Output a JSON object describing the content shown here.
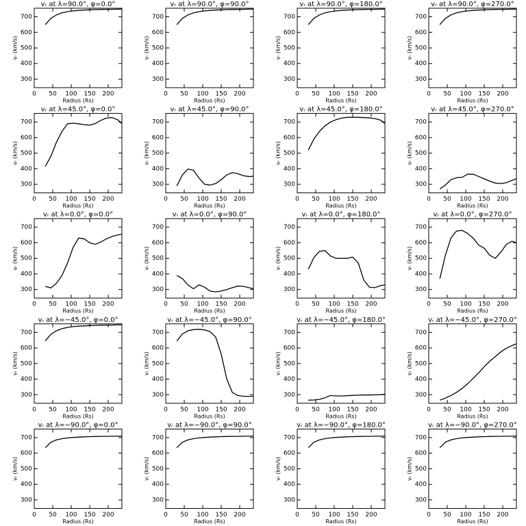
{
  "chart_data": [
    {
      "type": "line",
      "title": "vᵣ at λ=90.0°, φ=0.0°",
      "xlabel": "Radius (Rs)",
      "ylabel": "vᵣ (km/s)",
      "xlim": [
        0,
        237
      ],
      "ylim": [
        245,
        755
      ],
      "xticks": [
        0,
        50,
        100,
        150,
        200
      ],
      "yticks": [
        300,
        400,
        500,
        600,
        700
      ],
      "color": "#000000",
      "x": [
        30,
        45,
        60,
        75,
        90,
        105,
        120,
        135,
        150,
        165,
        180,
        195,
        210,
        225,
        237
      ],
      "values": [
        650,
        690,
        712,
        725,
        733,
        738,
        741,
        743,
        745,
        746,
        747,
        748,
        748,
        749,
        749
      ]
    },
    {
      "type": "line",
      "title": "vᵣ at λ=90.0°, φ=90.0°",
      "xlabel": "Radius (Rs)",
      "ylabel": "vᵣ (km/s)",
      "xlim": [
        0,
        237
      ],
      "ylim": [
        245,
        755
      ],
      "xticks": [
        0,
        50,
        100,
        150,
        200
      ],
      "yticks": [
        300,
        400,
        500,
        600,
        700
      ],
      "color": "#000000",
      "x": [
        30,
        45,
        60,
        75,
        90,
        105,
        120,
        135,
        150,
        165,
        180,
        195,
        210,
        225,
        237
      ],
      "values": [
        650,
        690,
        712,
        725,
        733,
        738,
        741,
        743,
        745,
        746,
        747,
        748,
        748,
        749,
        749
      ]
    },
    {
      "type": "line",
      "title": "vᵣ at λ=90.0°, φ=180.0°",
      "xlabel": "Radius (Rs)",
      "ylabel": "vᵣ (km/s)",
      "xlim": [
        0,
        237
      ],
      "ylim": [
        245,
        755
      ],
      "xticks": [
        0,
        50,
        100,
        150,
        200
      ],
      "yticks": [
        300,
        400,
        500,
        600,
        700
      ],
      "color": "#000000",
      "x": [
        30,
        45,
        60,
        75,
        90,
        105,
        120,
        135,
        150,
        165,
        180,
        195,
        210,
        225,
        237
      ],
      "values": [
        650,
        690,
        712,
        725,
        733,
        738,
        741,
        743,
        745,
        746,
        747,
        748,
        748,
        749,
        749
      ]
    },
    {
      "type": "line",
      "title": "vᵣ at λ=90.0°, φ=270.0°",
      "xlabel": "Radius (Rs)",
      "ylabel": "vᵣ (km/s)",
      "xlim": [
        0,
        237
      ],
      "ylim": [
        245,
        755
      ],
      "xticks": [
        0,
        50,
        100,
        150,
        200
      ],
      "yticks": [
        300,
        400,
        500,
        600,
        700
      ],
      "color": "#000000",
      "x": [
        30,
        45,
        60,
        75,
        90,
        105,
        120,
        135,
        150,
        165,
        180,
        195,
        210,
        225,
        237
      ],
      "values": [
        650,
        690,
        712,
        725,
        733,
        738,
        741,
        743,
        745,
        746,
        747,
        748,
        748,
        749,
        749
      ]
    },
    {
      "type": "line",
      "title": "vᵣ at λ=45.0°, φ=0.0°",
      "xlabel": "Radius (Rs)",
      "ylabel": "vᵣ (km/s)",
      "xlim": [
        0,
        237
      ],
      "ylim": [
        245,
        755
      ],
      "xticks": [
        0,
        50,
        100,
        150,
        200
      ],
      "yticks": [
        300,
        400,
        500,
        600,
        700
      ],
      "color": "#000000",
      "x": [
        30,
        45,
        60,
        75,
        90,
        105,
        120,
        135,
        150,
        165,
        180,
        195,
        210,
        225,
        237
      ],
      "values": [
        415,
        480,
        570,
        640,
        688,
        692,
        688,
        683,
        680,
        690,
        710,
        725,
        728,
        715,
        690
      ]
    },
    {
      "type": "line",
      "title": "vᵣ at λ=45.0°, φ=90.0°",
      "xlabel": "Radius (Rs)",
      "ylabel": "vᵣ (km/s)",
      "xlim": [
        0,
        237
      ],
      "ylim": [
        245,
        755
      ],
      "xticks": [
        0,
        50,
        100,
        150,
        200
      ],
      "yticks": [
        300,
        400,
        500,
        600,
        700
      ],
      "color": "#000000",
      "x": [
        30,
        45,
        60,
        75,
        90,
        105,
        120,
        135,
        150,
        165,
        180,
        195,
        210,
        225,
        237
      ],
      "values": [
        290,
        360,
        398,
        390,
        340,
        300,
        295,
        305,
        330,
        360,
        375,
        368,
        355,
        350,
        352
      ]
    },
    {
      "type": "line",
      "title": "vᵣ at λ=45.0°, φ=180.0°",
      "xlabel": "Radius (Rs)",
      "ylabel": "vᵣ (km/s)",
      "xlim": [
        0,
        237
      ],
      "ylim": [
        245,
        755
      ],
      "xticks": [
        0,
        50,
        100,
        150,
        200
      ],
      "yticks": [
        300,
        400,
        500,
        600,
        700
      ],
      "color": "#000000",
      "x": [
        30,
        45,
        60,
        75,
        90,
        105,
        120,
        135,
        150,
        165,
        180,
        195,
        210,
        225,
        237
      ],
      "values": [
        520,
        590,
        640,
        675,
        700,
        715,
        725,
        730,
        730,
        730,
        728,
        726,
        722,
        712,
        690
      ]
    },
    {
      "type": "line",
      "title": "vᵣ at λ=45.0°, φ=270.0°",
      "xlabel": "Radius (Rs)",
      "ylabel": "vᵣ (km/s)",
      "xlim": [
        0,
        237
      ],
      "ylim": [
        245,
        755
      ],
      "xticks": [
        0,
        50,
        100,
        150,
        200
      ],
      "yticks": [
        300,
        400,
        500,
        600,
        700
      ],
      "color": "#000000",
      "x": [
        30,
        45,
        60,
        75,
        90,
        105,
        120,
        135,
        150,
        165,
        180,
        195,
        210,
        225,
        237
      ],
      "values": [
        270,
        295,
        330,
        342,
        345,
        365,
        365,
        350,
        335,
        320,
        308,
        305,
        310,
        325,
        335
      ]
    },
    {
      "type": "line",
      "title": "vᵣ at λ=0.0°, φ=0.0°",
      "xlabel": "Radius (Rs)",
      "ylabel": "vᵣ (km/s)",
      "xlim": [
        0,
        237
      ],
      "ylim": [
        245,
        755
      ],
      "xticks": [
        0,
        50,
        100,
        150,
        200
      ],
      "yticks": [
        300,
        400,
        500,
        600,
        700
      ],
      "color": "#000000",
      "x": [
        30,
        45,
        60,
        75,
        90,
        105,
        120,
        135,
        150,
        165,
        180,
        195,
        210,
        225,
        237
      ],
      "values": [
        320,
        310,
        340,
        390,
        470,
        570,
        630,
        625,
        600,
        590,
        605,
        625,
        640,
        650,
        655
      ]
    },
    {
      "type": "line",
      "title": "vᵣ at λ=0.0°, φ=90.0°",
      "xlabel": "Radius (Rs)",
      "ylabel": "vᵣ (km/s)",
      "xlim": [
        0,
        237
      ],
      "ylim": [
        245,
        755
      ],
      "xticks": [
        0,
        50,
        100,
        150,
        200
      ],
      "yticks": [
        300,
        400,
        500,
        600,
        700
      ],
      "color": "#000000",
      "x": [
        30,
        45,
        60,
        75,
        90,
        105,
        120,
        135,
        150,
        165,
        180,
        195,
        210,
        225,
        237
      ],
      "values": [
        390,
        370,
        330,
        305,
        330,
        315,
        290,
        285,
        290,
        300,
        312,
        322,
        320,
        312,
        305
      ]
    },
    {
      "type": "line",
      "title": "vᵣ at λ=0.0°, φ=180.0°",
      "xlabel": "Radius (Rs)",
      "ylabel": "vᵣ (km/s)",
      "xlim": [
        0,
        237
      ],
      "ylim": [
        245,
        755
      ],
      "xticks": [
        0,
        50,
        100,
        150,
        200
      ],
      "yticks": [
        300,
        400,
        500,
        600,
        700
      ],
      "color": "#000000",
      "x": [
        30,
        45,
        60,
        75,
        90,
        105,
        120,
        135,
        150,
        165,
        180,
        195,
        210,
        225,
        237
      ],
      "values": [
        430,
        505,
        545,
        550,
        515,
        500,
        500,
        500,
        508,
        470,
        360,
        315,
        312,
        325,
        330
      ]
    },
    {
      "type": "line",
      "title": "vᵣ at λ=0.0°, φ=270.0°",
      "xlabel": "Radius (Rs)",
      "ylabel": "vᵣ (km/s)",
      "xlim": [
        0,
        237
      ],
      "ylim": [
        245,
        755
      ],
      "xticks": [
        0,
        50,
        100,
        150,
        200
      ],
      "yticks": [
        300,
        400,
        500,
        600,
        700
      ],
      "color": "#000000",
      "x": [
        30,
        45,
        60,
        75,
        90,
        105,
        120,
        135,
        150,
        165,
        180,
        195,
        210,
        225,
        237
      ],
      "values": [
        370,
        520,
        630,
        675,
        680,
        660,
        630,
        585,
        565,
        520,
        500,
        540,
        590,
        610,
        600
      ]
    },
    {
      "type": "line",
      "title": "vᵣ at λ=−45.0°, φ=0.0°",
      "xlabel": "Radius (Rs)",
      "ylabel": "vᵣ (km/s)",
      "xlim": [
        0,
        237
      ],
      "ylim": [
        245,
        755
      ],
      "xticks": [
        0,
        50,
        100,
        150,
        200
      ],
      "yticks": [
        300,
        400,
        500,
        600,
        700
      ],
      "color": "#000000",
      "x": [
        30,
        45,
        60,
        75,
        90,
        105,
        120,
        135,
        150,
        165,
        180,
        195,
        210,
        225,
        237
      ],
      "values": [
        645,
        688,
        710,
        724,
        732,
        737,
        740,
        742,
        744,
        745,
        746,
        747,
        747,
        748,
        748
      ]
    },
    {
      "type": "line",
      "title": "vᵣ at λ=−45.0°, φ=90.0°",
      "xlabel": "Radius (Rs)",
      "ylabel": "vᵣ (km/s)",
      "xlim": [
        0,
        237
      ],
      "ylim": [
        245,
        755
      ],
      "xticks": [
        0,
        50,
        100,
        150,
        200
      ],
      "yticks": [
        300,
        400,
        500,
        600,
        700
      ],
      "color": "#000000",
      "x": [
        30,
        45,
        60,
        75,
        90,
        105,
        120,
        135,
        150,
        165,
        180,
        195,
        210,
        225,
        237
      ],
      "values": [
        645,
        690,
        710,
        718,
        720,
        716,
        705,
        670,
        560,
        400,
        315,
        295,
        290,
        290,
        290
      ]
    },
    {
      "type": "line",
      "title": "vᵣ at λ=−45.0°, φ=180.0°",
      "xlabel": "Radius (Rs)",
      "ylabel": "vᵣ (km/s)",
      "xlim": [
        0,
        237
      ],
      "ylim": [
        245,
        755
      ],
      "xticks": [
        0,
        50,
        100,
        150,
        200
      ],
      "yticks": [
        300,
        400,
        500,
        600,
        700
      ],
      "color": "#000000",
      "x": [
        30,
        45,
        60,
        75,
        90,
        105,
        120,
        135,
        150,
        165,
        180,
        195,
        210,
        225,
        237
      ],
      "values": [
        265,
        266,
        270,
        280,
        295,
        292,
        292,
        294,
        296,
        297,
        298,
        298,
        299,
        300,
        303
      ]
    },
    {
      "type": "line",
      "title": "vᵣ at λ=−45.0°, φ=270.0°",
      "xlabel": "Radius (Rs)",
      "ylabel": "vᵣ (km/s)",
      "xlim": [
        0,
        237
      ],
      "ylim": [
        245,
        755
      ],
      "xticks": [
        0,
        50,
        100,
        150,
        200
      ],
      "yticks": [
        300,
        400,
        500,
        600,
        700
      ],
      "color": "#000000",
      "x": [
        30,
        45,
        60,
        75,
        90,
        105,
        120,
        135,
        150,
        165,
        180,
        195,
        210,
        225,
        237
      ],
      "values": [
        265,
        278,
        295,
        315,
        340,
        370,
        405,
        440,
        480,
        515,
        545,
        575,
        598,
        615,
        627
      ]
    },
    {
      "type": "line",
      "title": "vᵣ at λ=−90.0°, φ=0.0°",
      "xlabel": "Radius (Rs)",
      "ylabel": "vᵣ (km/s)",
      "xlim": [
        0,
        237
      ],
      "ylim": [
        245,
        755
      ],
      "xticks": [
        0,
        50,
        100,
        150,
        200
      ],
      "yticks": [
        300,
        400,
        500,
        600,
        700
      ],
      "color": "#000000",
      "x": [
        30,
        45,
        60,
        75,
        90,
        105,
        120,
        135,
        150,
        165,
        180,
        195,
        210,
        225,
        237
      ],
      "values": [
        635,
        670,
        685,
        693,
        698,
        701,
        703,
        705,
        706,
        707,
        708,
        708,
        709,
        709,
        710
      ]
    },
    {
      "type": "line",
      "title": "vᵣ at λ=−90.0°, φ=90.0°",
      "xlabel": "Radius (Rs)",
      "ylabel": "vᵣ (km/s)",
      "xlim": [
        0,
        237
      ],
      "ylim": [
        245,
        755
      ],
      "xticks": [
        0,
        50,
        100,
        150,
        200
      ],
      "yticks": [
        300,
        400,
        500,
        600,
        700
      ],
      "color": "#000000",
      "x": [
        30,
        45,
        60,
        75,
        90,
        105,
        120,
        135,
        150,
        165,
        180,
        195,
        210,
        225,
        237
      ],
      "values": [
        635,
        670,
        685,
        693,
        698,
        701,
        703,
        705,
        706,
        707,
        708,
        708,
        709,
        709,
        710
      ]
    },
    {
      "type": "line",
      "title": "vᵣ at λ=−90.0°, φ=180.0°",
      "xlabel": "Radius (Rs)",
      "ylabel": "vᵣ (km/s)",
      "xlim": [
        0,
        237
      ],
      "ylim": [
        245,
        755
      ],
      "xticks": [
        0,
        50,
        100,
        150,
        200
      ],
      "yticks": [
        300,
        400,
        500,
        600,
        700
      ],
      "color": "#000000",
      "x": [
        30,
        45,
        60,
        75,
        90,
        105,
        120,
        135,
        150,
        165,
        180,
        195,
        210,
        225,
        237
      ],
      "values": [
        635,
        670,
        685,
        693,
        698,
        701,
        703,
        705,
        706,
        707,
        708,
        708,
        709,
        709,
        710
      ]
    },
    {
      "type": "line",
      "title": "vᵣ at λ=−90.0°, φ=270.0°",
      "xlabel": "Radius (Rs)",
      "ylabel": "vᵣ (km/s)",
      "xlim": [
        0,
        237
      ],
      "ylim": [
        245,
        755
      ],
      "xticks": [
        0,
        50,
        100,
        150,
        200
      ],
      "yticks": [
        300,
        400,
        500,
        600,
        700
      ],
      "color": "#000000",
      "x": [
        30,
        45,
        60,
        75,
        90,
        105,
        120,
        135,
        150,
        165,
        180,
        195,
        210,
        225,
        237
      ],
      "values": [
        635,
        670,
        685,
        693,
        698,
        701,
        703,
        705,
        706,
        707,
        708,
        708,
        709,
        709,
        710
      ]
    }
  ]
}
